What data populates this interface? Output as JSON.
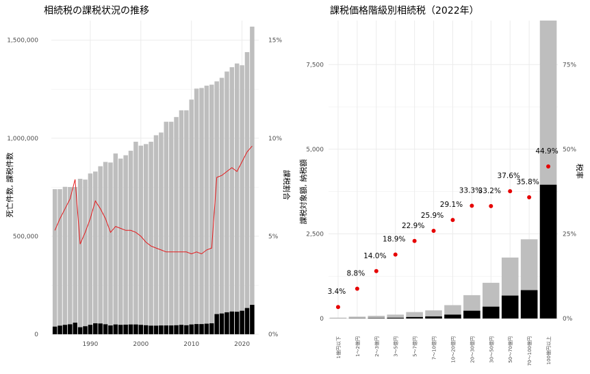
{
  "colors": {
    "background": "#ffffff",
    "grid": "#ebebeb",
    "bar_gray": "#bebebe",
    "bar_black": "#000000",
    "line_red": "#e41a1c",
    "point_red": "#e60000",
    "tick_text": "#4d4d4d"
  },
  "chart_data": [
    {
      "type": "bar",
      "title": "相続税の課税状況の推移",
      "ylabel": "死亡件数, 課税件数",
      "y2label": "課税割合",
      "xlim": [
        1982.3,
        2023.3
      ],
      "ylim": [
        0,
        1600000
      ],
      "y2lim": [
        0,
        0.16
      ],
      "grid": true,
      "x_ticks": [
        {
          "value": 1990,
          "label": "1990"
        },
        {
          "value": 2000,
          "label": "2000"
        },
        {
          "value": 2010,
          "label": "2010"
        },
        {
          "value": 2020,
          "label": "2020"
        }
      ],
      "y_ticks": [
        {
          "value": 0,
          "label": "0"
        },
        {
          "value": 500000,
          "label": "500,000"
        },
        {
          "value": 1000000,
          "label": "1,000,000"
        },
        {
          "value": 1500000,
          "label": "1,500,000"
        }
      ],
      "y2_ticks": [
        {
          "value": 0,
          "label": "0%"
        },
        {
          "value": 0.05,
          "label": "5%"
        },
        {
          "value": 0.1,
          "label": "10%"
        },
        {
          "value": 0.15,
          "label": "15%"
        }
      ],
      "years": [
        1983,
        1984,
        1985,
        1986,
        1987,
        1988,
        1989,
        1990,
        1991,
        1992,
        1993,
        1994,
        1995,
        1996,
        1997,
        1998,
        1999,
        2000,
        2001,
        2002,
        2003,
        2004,
        2005,
        2006,
        2007,
        2008,
        2009,
        2010,
        2011,
        2012,
        2013,
        2014,
        2015,
        2016,
        2017,
        2018,
        2019,
        2020,
        2021,
        2022
      ],
      "series": [
        {
          "kind": "bar",
          "values": [
            740000,
            740000,
            752000,
            751000,
            751000,
            793000,
            789000,
            820000,
            830000,
            857000,
            879000,
            876000,
            922000,
            896000,
            913000,
            936000,
            982000,
            962000,
            970000,
            982000,
            1015000,
            1029000,
            1084000,
            1084000,
            1108000,
            1142000,
            1142000,
            1197000,
            1253000,
            1256000,
            1268000,
            1273000,
            1290000,
            1308000,
            1340000,
            1362000,
            1381000,
            1372000,
            1439000,
            1569000
          ]
        },
        {
          "kind": "bar",
          "values": [
            39000,
            44000,
            48000,
            51000,
            59000,
            36000,
            41000,
            48000,
            56000,
            55000,
            51000,
            45000,
            50000,
            48000,
            49000,
            50000,
            50000,
            48000,
            46000,
            44000,
            44000,
            45000,
            45000,
            45000,
            46000,
            48000,
            46000,
            50000,
            52000,
            52000,
            54000,
            56000,
            103000,
            106000,
            112000,
            116000,
            115000,
            120000,
            134000,
            150000
          ]
        },
        {
          "kind": "line",
          "axis": "y2",
          "values": [
            0.053,
            0.059,
            0.064,
            0.069,
            0.079,
            0.046,
            0.052,
            0.059,
            0.068,
            0.064,
            0.059,
            0.052,
            0.055,
            0.054,
            0.053,
            0.053,
            0.052,
            0.05,
            0.047,
            0.045,
            0.044,
            0.043,
            0.042,
            0.042,
            0.042,
            0.042,
            0.042,
            0.041,
            0.042,
            0.041,
            0.043,
            0.044,
            0.08,
            0.081,
            0.083,
            0.085,
            0.083,
            0.088,
            0.093,
            0.096
          ]
        }
      ]
    },
    {
      "type": "bar",
      "title": "課税価格階級別相続税（2022年）",
      "ylabel": "課税対象額, 納税額",
      "y2label": "税率",
      "ylim": [
        0,
        8800
      ],
      "y2lim": [
        0,
        0.88
      ],
      "grid": true,
      "y_ticks": [
        {
          "value": 0,
          "label": "0"
        },
        {
          "value": 2500,
          "label": "2,500"
        },
        {
          "value": 5000,
          "label": "5,000"
        },
        {
          "value": 7500,
          "label": "7,500"
        }
      ],
      "y2_ticks": [
        {
          "value": 0,
          "label": "0%"
        },
        {
          "value": 0.25,
          "label": "25%"
        },
        {
          "value": 0.5,
          "label": "50%"
        },
        {
          "value": 0.75,
          "label": "75%"
        }
      ],
      "categories": [
        "1億円以下",
        "1〜2億円",
        "2〜3億円",
        "3〜5億円",
        "5〜7億円",
        "7〜10億円",
        "10〜20億円",
        "20〜30億円",
        "30〜50億円",
        "50〜70億円",
        "70〜100億円",
        "100億円以上"
      ],
      "series": [
        {
          "kind": "bar",
          "values": [
            25,
            55,
            80,
            115,
            190,
            240,
            395,
            690,
            1055,
            1800,
            2340,
            8800
          ]
        },
        {
          "kind": "bar",
          "values": [
            1,
            5,
            11,
            22,
            44,
            62,
            115,
            230,
            350,
            677,
            838,
            3951
          ]
        },
        {
          "kind": "point",
          "axis": "y2",
          "values": [
            0.034,
            0.088,
            0.14,
            0.189,
            0.229,
            0.259,
            0.291,
            0.333,
            0.332,
            0.376,
            0.358,
            0.449
          ],
          "labels": [
            "3.4%",
            "8.8%",
            "14.0%",
            "18.9%",
            "22.9%",
            "25.9%",
            "29.1%",
            "33.3%",
            "33.2%",
            "37.6%",
            "35.8%",
            "44.9%"
          ]
        }
      ]
    }
  ]
}
